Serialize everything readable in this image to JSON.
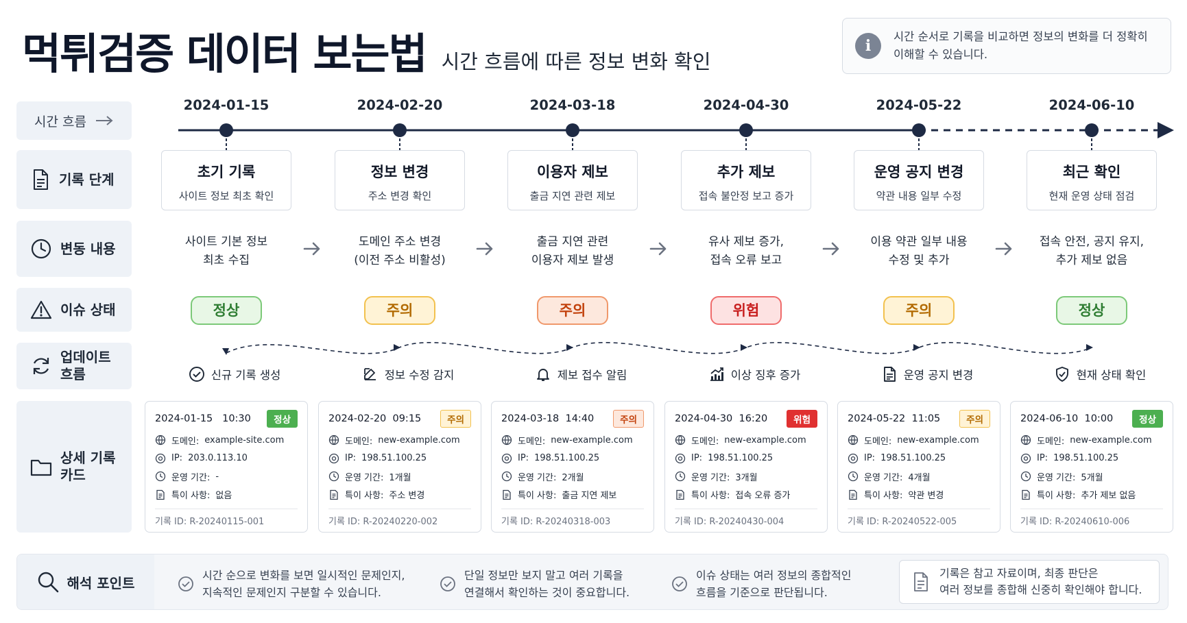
{
  "header": {
    "title": "먹튀검증 데이터 보는법",
    "subtitle": "시간 흐름에 따른 정보 변화 확인",
    "info_line1": "시간 순서로 기록을 비교하면 정보의 변화를 더 정확히",
    "info_line2": "이해할 수 있습니다.",
    "info_icon": "info-icon"
  },
  "rows": {
    "time_flow": "시간 흐름",
    "record_stage": "기록 단계",
    "changes": "변동 내용",
    "issue_status": "이슈 상태",
    "update_flow_1": "업데이트",
    "update_flow_2": "흐름",
    "detail_card_1": "상세 기록",
    "detail_card_2": "카드"
  },
  "timeline": [
    {
      "date": "2024-01-15",
      "stage": "초기 기록",
      "stage_sub": "사이트 정보 최초 확인",
      "change1": "사이트 기본 정보",
      "change2": "최초 수집",
      "status": "정상",
      "status_type": "normal",
      "update": "신규 기록 생성",
      "update_icon": "check-circle-icon",
      "card": {
        "datetime": "2024-01-15   10:30",
        "badge": "정상",
        "domain_k": "도메인:",
        "domain": "example-site.com",
        "ip_k": "IP:",
        "ip": "203.0.113.10",
        "period_k": "운영 기간:",
        "period": "-",
        "note_k": "특이 사항:",
        "note": "없음",
        "id": "기록 ID: R-20240115-001"
      }
    },
    {
      "date": "2024-02-20",
      "stage": "정보 변경",
      "stage_sub": "주소 변경 확인",
      "change1": "도메인 주소 변경",
      "change2": "(이전 주소 비활성)",
      "status": "주의",
      "status_type": "warn",
      "update": "정보 수정 감지",
      "update_icon": "edit-icon",
      "card": {
        "datetime": "2024-02-20  09:15",
        "badge": "주의",
        "domain_k": "도메인:",
        "domain": "new-example.com",
        "ip_k": "IP:",
        "ip": "198.51.100.25",
        "period_k": "운영 기간:",
        "period": "1개월",
        "note_k": "특이 사항:",
        "note": "주소 변경",
        "id": "기록 ID: R-20240220-002"
      }
    },
    {
      "date": "2024-03-18",
      "stage": "이용자 제보",
      "stage_sub": "출금 지연 관련 제보",
      "change1": "출금 지연 관련",
      "change2": "이용자 제보 발생",
      "status": "주의",
      "status_type": "caution",
      "update": "제보 접수 알림",
      "update_icon": "bell-icon",
      "card": {
        "datetime": "2024-03-18  14:40",
        "badge": "주의",
        "domain_k": "도메인:",
        "domain": "new-example.com",
        "ip_k": "IP:",
        "ip": "198.51.100.25",
        "period_k": "운영 기간:",
        "period": "2개월",
        "note_k": "특이 사항:",
        "note": "출금 지연 제보",
        "id": "기록 ID: R-20240318-003"
      }
    },
    {
      "date": "2024-04-30",
      "stage": "추가 제보",
      "stage_sub": "접속 불안정 보고 증가",
      "change1": "유사 제보 증가,",
      "change2": "접속 오류 보고",
      "status": "위험",
      "status_type": "danger",
      "update": "이상 징후 증가",
      "update_icon": "trend-chart-icon",
      "card": {
        "datetime": "2024-04-30  16:20",
        "badge": "위험",
        "domain_k": "도메인:",
        "domain": "new-example.com",
        "ip_k": "IP:",
        "ip": "198.51.100.25",
        "period_k": "운영 기간:",
        "period": "3개월",
        "note_k": "특이 사항:",
        "note": "접속 오류 증가",
        "id": "기록 ID: R-20240430-004"
      }
    },
    {
      "date": "2024-05-22",
      "stage": "운영 공지 변경",
      "stage_sub": "약관 내용 일부 수정",
      "change1": "이용 약관 일부 내용",
      "change2": "수정 및 추가",
      "status": "주의",
      "status_type": "warn",
      "update": "운영 공지 변경",
      "update_icon": "document-icon",
      "card": {
        "datetime": "2024-05-22  11:05",
        "badge": "주의",
        "domain_k": "도메인:",
        "domain": "new-example.com",
        "ip_k": "IP:",
        "ip": "198.51.100.25",
        "period_k": "운영 기간:",
        "period": "4개월",
        "note_k": "특이 사항:",
        "note": "약관 변경",
        "id": "기록 ID: R-20240522-005"
      }
    },
    {
      "date": "2024-06-10",
      "stage": "최근 확인",
      "stage_sub": "현재 운영 상태 점검",
      "change1": "접속 안전, 공지 유지,",
      "change2": "추가 제보 없음",
      "status": "정상",
      "status_type": "normal",
      "update": "현재 상태 확인",
      "update_icon": "shield-check-icon",
      "card": {
        "datetime": "2024-06-10  10:00",
        "badge": "정상",
        "domain_k": "도메인:",
        "domain": "new-example.com",
        "ip_k": "IP:",
        "ip": "198.51.100.25",
        "period_k": "운영 기간:",
        "period": "5개월",
        "note_k": "특이 사항:",
        "note": "추가 제보 없음",
        "id": "기록 ID: R-20240610-006"
      }
    }
  ],
  "interpretation": {
    "label": "해석 포인트",
    "points": [
      {
        "line1": "시간 순으로 변화를 보면 일시적인 문제인지,",
        "line2": "지속적인 문제인지 구분할 수 있습니다."
      },
      {
        "line1": "단일 정보만 보지 말고 여러 기록을",
        "line2": "연결해서 확인하는 것이 중요합니다."
      },
      {
        "line1": "이슈 상태는 여러 정보의 종합적인",
        "line2": "흐름을 기준으로 판단됩니다."
      }
    ],
    "note_line1": "기록은 참고 자료이며, 최종 판단은",
    "note_line2": "여러 정보를 종합해 신중히 확인해야 합니다."
  },
  "colors": {
    "timeline": "#1e2a44",
    "normal": "#4caf50",
    "warn": "#f2c14e",
    "caution": "#f0986b",
    "danger": "#e03131"
  }
}
